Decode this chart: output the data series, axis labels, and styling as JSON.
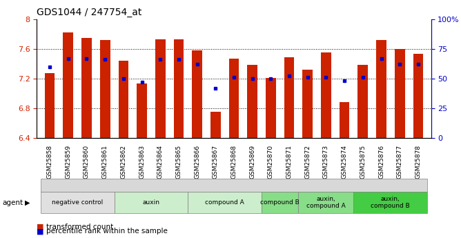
{
  "title": "GDS1044 / 247754_at",
  "samples": [
    "GSM25858",
    "GSM25859",
    "GSM25860",
    "GSM25861",
    "GSM25862",
    "GSM25863",
    "GSM25864",
    "GSM25865",
    "GSM25866",
    "GSM25867",
    "GSM25868",
    "GSM25869",
    "GSM25870",
    "GSM25871",
    "GSM25872",
    "GSM25873",
    "GSM25874",
    "GSM25875",
    "GSM25876",
    "GSM25877",
    "GSM25878"
  ],
  "bar_values": [
    7.27,
    7.82,
    7.75,
    7.72,
    7.44,
    7.13,
    7.73,
    7.73,
    7.58,
    6.75,
    7.47,
    7.38,
    7.21,
    7.49,
    7.32,
    7.55,
    6.88,
    7.38,
    7.72,
    7.6,
    7.53
  ],
  "percentile_values": [
    60,
    67,
    67,
    66,
    50,
    47,
    66,
    66,
    62,
    42,
    51,
    50,
    50,
    52,
    51,
    51,
    48,
    51,
    67,
    62,
    62
  ],
  "ylim_left": [
    6.4,
    8.0
  ],
  "ylim_right": [
    0,
    100
  ],
  "yticks_left": [
    6.4,
    6.8,
    7.2,
    7.6,
    8.0
  ],
  "ytick_labels_left": [
    "6.4",
    "6.8",
    "7.2",
    "7.6",
    "8"
  ],
  "yticks_right": [
    0,
    25,
    50,
    75,
    100
  ],
  "ytick_labels_right": [
    "0",
    "25",
    "50",
    "75",
    "100%"
  ],
  "bar_color": "#cc2200",
  "dot_color": "#0000cc",
  "bar_bottom": 6.4,
  "groups": [
    {
      "label": "negative control",
      "start": 0,
      "end": 4,
      "color": "#e0e0e0"
    },
    {
      "label": "auxin",
      "start": 4,
      "end": 8,
      "color": "#cceecc"
    },
    {
      "label": "compound A",
      "start": 8,
      "end": 12,
      "color": "#cceecc"
    },
    {
      "label": "compound B",
      "start": 12,
      "end": 14,
      "color": "#88dd88"
    },
    {
      "label": "auxin,\ncompound A",
      "start": 14,
      "end": 17,
      "color": "#88dd88"
    },
    {
      "label": "auxin,\ncompound B",
      "start": 17,
      "end": 21,
      "color": "#44cc44"
    }
  ],
  "legend_red_label": "transformed count",
  "legend_blue_label": "percentile rank within the sample",
  "bar_color_legend": "#cc2200",
  "dot_color_legend": "#0000cc",
  "xlabel_fontsize": 6.5,
  "title_fontsize": 10,
  "ylabel_left_color": "#cc2200",
  "ylabel_right_color": "#0000cc",
  "agent_label": "agent"
}
